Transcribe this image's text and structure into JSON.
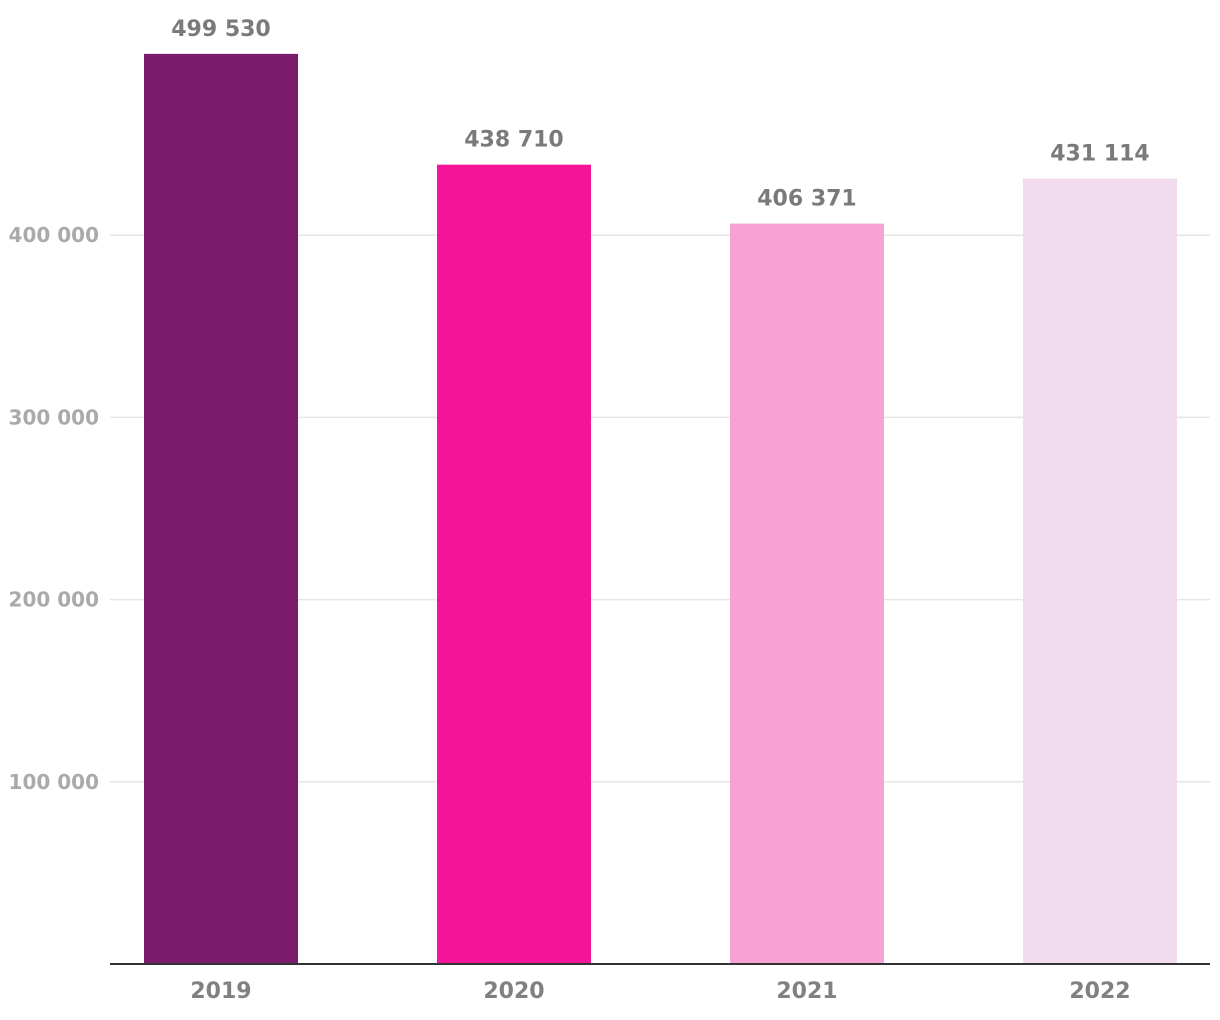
{
  "chart_data": {
    "type": "bar",
    "title": "",
    "xlabel": "",
    "ylabel": "",
    "categories": [
      "2019",
      "2020",
      "2021",
      "2022"
    ],
    "values": [
      499530,
      438710,
      406371,
      431114
    ],
    "value_labels": [
      "499 530",
      "438 710",
      "406 371",
      "431 114"
    ],
    "bar_colors": [
      "#7b1b6d",
      "#f5139a",
      "#f9a0d4",
      "#f2dbed"
    ],
    "ylim": [
      0,
      500000
    ],
    "yticks": [
      100000,
      200000,
      300000,
      400000
    ],
    "ytick_labels": [
      "100 000",
      "200 000",
      "300 000",
      "400 000"
    ],
    "grid": true,
    "legend": "none"
  }
}
